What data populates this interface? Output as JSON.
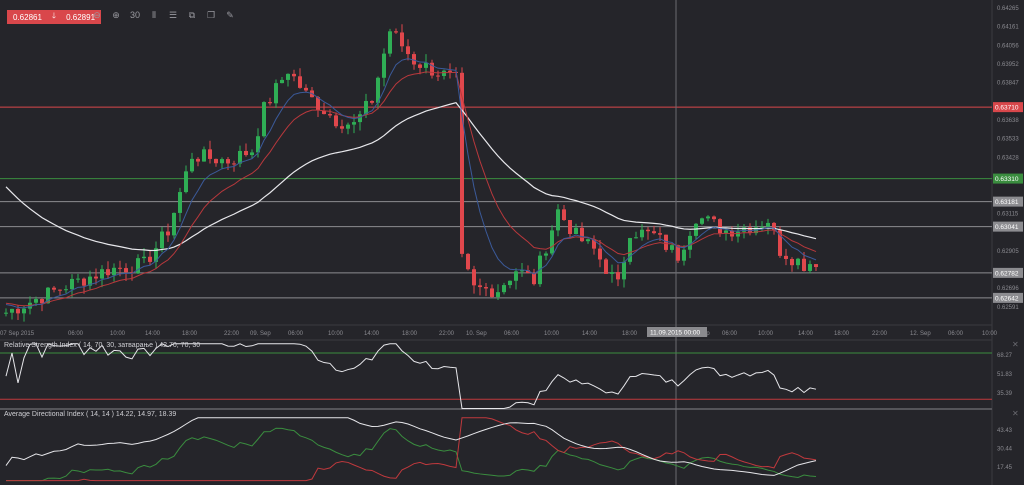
{
  "header": {
    "bid": "0.62861",
    "arrow_icon": "arrow-down-icon",
    "ask": "0.62891",
    "toolbar_icons": [
      {
        "name": "zoom-out-icon",
        "glyph": "⊖"
      },
      {
        "name": "zoom-in-icon",
        "glyph": "⊕"
      },
      {
        "name": "timeframe-icon",
        "glyph": "30"
      },
      {
        "name": "chart-type-icon",
        "glyph": "⫴"
      },
      {
        "name": "indicators-icon",
        "glyph": "☰"
      },
      {
        "name": "screenshot-icon",
        "glyph": "⧉"
      },
      {
        "name": "copy-icon",
        "glyph": "❐"
      },
      {
        "name": "draw-icon",
        "glyph": "✎"
      }
    ]
  },
  "price_axis": {
    "ticks": [
      "0.64265",
      "0.64161",
      "0.64056",
      "0.63952",
      "0.63847",
      "0.63638",
      "0.63533",
      "0.63428",
      "0.63115",
      "0.62905",
      "0.62696",
      "0.62591"
    ],
    "levels": [
      {
        "value": "0.63710",
        "color": "#d9474b"
      },
      {
        "value": "0.63310",
        "color": "#3a8d3f"
      },
      {
        "value": "0.63181",
        "color": "#8c8c90"
      },
      {
        "value": "0.63041",
        "color": "#8c8c90"
      },
      {
        "value": "0.62782",
        "color": "#8c8c90"
      },
      {
        "value": "0.62642",
        "color": "#8c8c90"
      }
    ],
    "min": 0.62591,
    "max": 0.64265
  },
  "time_axis": {
    "labels": [
      "07 Sep 2015",
      "06:00",
      "10:00",
      "14:00",
      "18:00",
      "22:00",
      "09. Sep",
      "06:00",
      "10:00",
      "14:00",
      "18:00",
      "22:00",
      "10. Sep",
      "06:00",
      "10:00",
      "14:00",
      "18:00",
      "Sep",
      "06:00",
      "10:00",
      "14:00",
      "18:00",
      "22:00",
      "12. Sep",
      "06:00",
      "10:00"
    ],
    "crosshair_label": "11.09.2015 00:00"
  },
  "chart_data": {
    "type": "candlestick",
    "price_path": [
      [
        0,
        0.6256
      ],
      [
        10,
        0.6271
      ],
      [
        17,
        0.628
      ],
      [
        23,
        0.6283
      ],
      [
        27,
        0.6302
      ],
      [
        31,
        0.6344
      ],
      [
        37,
        0.6341
      ],
      [
        41,
        0.6347
      ],
      [
        43,
        0.637
      ],
      [
        47,
        0.6392
      ],
      [
        50,
        0.6378
      ],
      [
        55,
        0.6364
      ],
      [
        58,
        0.6361
      ],
      [
        61,
        0.6375
      ],
      [
        64,
        0.6414
      ],
      [
        68,
        0.6397
      ],
      [
        71,
        0.6392
      ],
      [
        75,
        0.6386
      ],
      [
        76,
        0.6285
      ],
      [
        78,
        0.6269
      ],
      [
        82,
        0.6269
      ],
      [
        85,
        0.628
      ],
      [
        88,
        0.6274
      ],
      [
        92,
        0.6313
      ],
      [
        95,
        0.6299
      ],
      [
        98,
        0.6291
      ],
      [
        102,
        0.6271
      ],
      [
        104,
        0.6302
      ],
      [
        108,
        0.6299
      ],
      [
        112,
        0.6288
      ],
      [
        115,
        0.631
      ],
      [
        120,
        0.6302
      ],
      [
        125,
        0.6305
      ],
      [
        127,
        0.6308
      ],
      [
        129,
        0.6291
      ],
      [
        133,
        0.6283
      ],
      [
        135,
        0.6285
      ]
    ],
    "colors": {
      "up": "#2fae55",
      "down": "#e0474c",
      "ma_fast": "#3b5a9a",
      "ma_mid": "#b8383c",
      "ma_slow": "#e8e8ec"
    }
  },
  "rsi": {
    "title": "Relative Strength Index ( 14, 70, 30, затварање ) 42.70, 70, 30",
    "ticks": [
      "68.27",
      "51.83",
      "35.39"
    ]
  },
  "adx": {
    "title": "Average Directional Index ( 14, 14 ) 14.22, 14.97, 18.39",
    "ticks": [
      "43.43",
      "30.44",
      "17.45"
    ]
  }
}
